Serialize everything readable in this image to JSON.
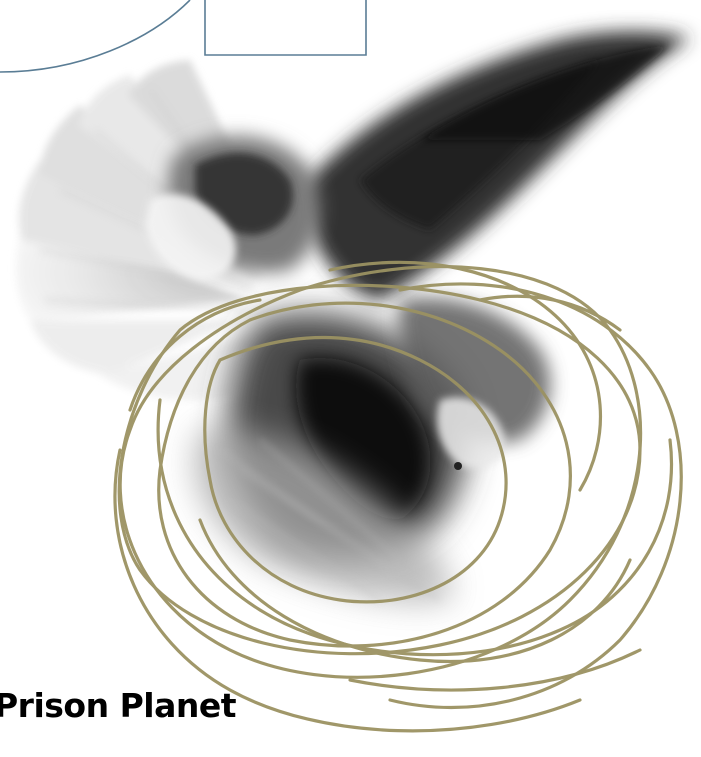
{
  "title": "Prison Planet",
  "colors": {
    "background": "#ffffff",
    "outline_blue": "#5a7d95",
    "scribble_gold": "#9b9262",
    "title_text": "#000000"
  },
  "illustration": {
    "subject": "dove-in-flight",
    "overlay": "gold-scribble-loops"
  }
}
